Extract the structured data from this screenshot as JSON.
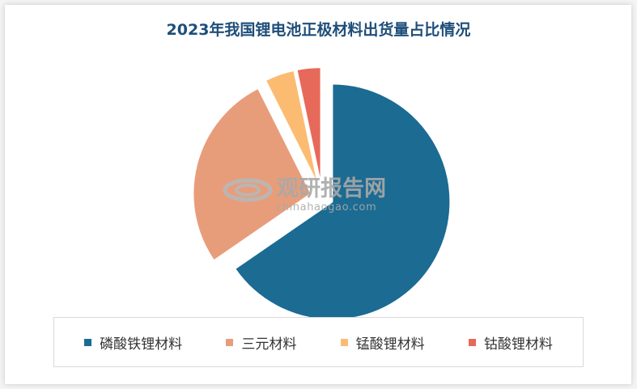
{
  "chart_data": {
    "type": "pie",
    "title": "2023年我国锂电池正极材料出货量占比情况",
    "categories": [
      "磷酸铁锂材料",
      "三元材料",
      "锰酸锂材料",
      "钴酸锂材料"
    ],
    "values": [
      65.4,
      27.2,
      4.1,
      3.3
    ],
    "unit": "%",
    "colors": [
      "#1b6b93",
      "#e89d7a",
      "#fbbc72",
      "#e7695a"
    ],
    "exploded": true,
    "legend_position": "bottom"
  },
  "watermark": {
    "cn": "观研报告网",
    "en": "chinahaogao.com"
  }
}
